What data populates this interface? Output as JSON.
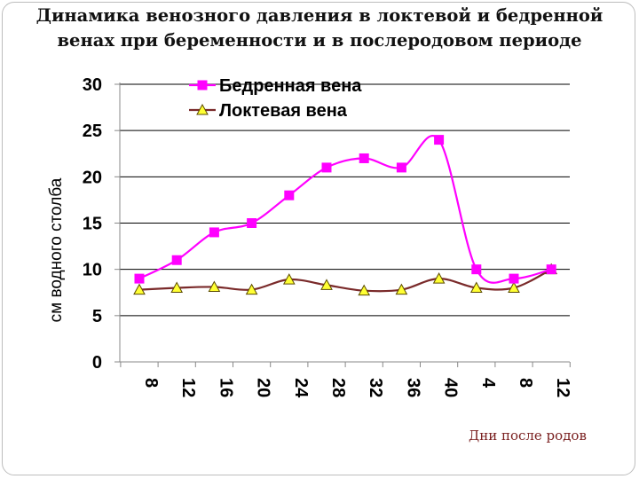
{
  "title_line1": "Динамика венозного давления в локтевой и бедренной",
  "title_line2": "венах при беременности и в послеродовом периоде",
  "chart_data": {
    "type": "line",
    "title": "Динамика венозного давления в локтевой и бедренной венах при беременности и в послеродовом периоде",
    "ylabel": "см водного столба",
    "xlabel": "Дни после родов",
    "ylim": [
      0,
      30
    ],
    "yticks": [
      "0",
      "5",
      "10",
      "15",
      "20",
      "25",
      "30"
    ],
    "categories": [
      "8",
      "12",
      "16",
      "20",
      "24",
      "28",
      "32",
      "36",
      "40",
      "4",
      "8",
      "12"
    ],
    "grid": true,
    "legend_position": "top",
    "series": [
      {
        "name": "Бедренная вена",
        "color": "#ff00ff",
        "marker": "square",
        "values": [
          9,
          11,
          14,
          15,
          18,
          21,
          22,
          21,
          24,
          10,
          9,
          10
        ]
      },
      {
        "name": "Локтевая вена",
        "color": "#7a2a2a",
        "marker": "triangle",
        "values": [
          7.8,
          8,
          8.1,
          7.8,
          8.9,
          8.3,
          7.7,
          7.8,
          9,
          8,
          8,
          10
        ]
      }
    ]
  }
}
